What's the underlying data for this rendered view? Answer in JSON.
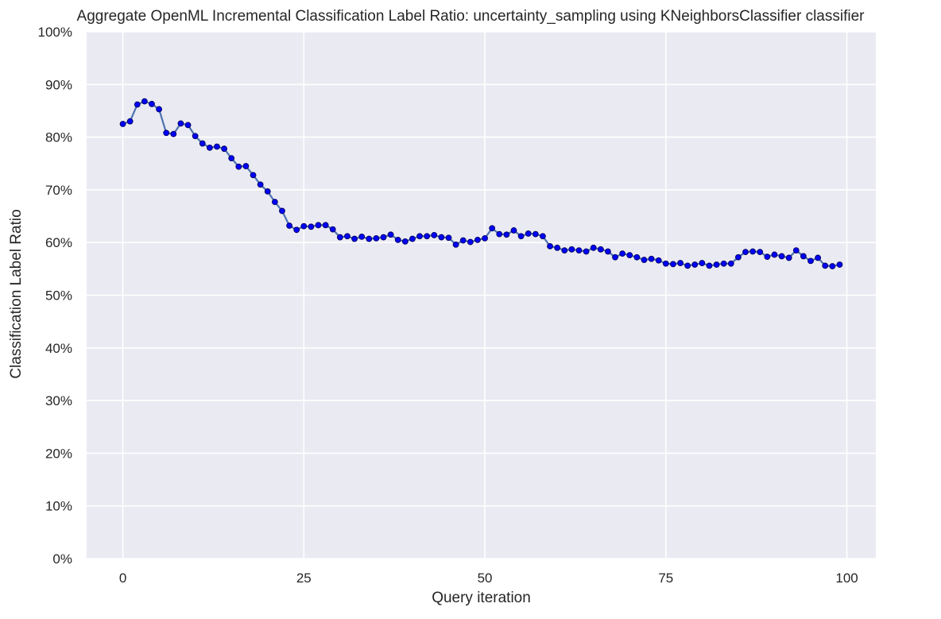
{
  "chart_data": {
    "type": "line",
    "title": "Aggregate OpenML Incremental Classification Label Ratio: uncertainty_sampling using KNeighborsClassifier classifier",
    "xlabel": "Query iteration",
    "ylabel": "Classification Label Ratio",
    "xlim": [
      -5,
      104
    ],
    "ylim": [
      0,
      1
    ],
    "xticks": [
      0,
      25,
      50,
      75,
      100
    ],
    "yticks": [
      0,
      0.1,
      0.2,
      0.3,
      0.4,
      0.5,
      0.6,
      0.7,
      0.8,
      0.9,
      1.0
    ],
    "y_format": "percent",
    "grid": true,
    "legend": "none",
    "colors": {
      "background": "#eaeaf2",
      "grid": "#ffffff",
      "line": "#4c72b0",
      "marker": "#0000ff",
      "marker_edge": "#000066"
    },
    "series": [
      {
        "x": [
          0,
          1,
          2,
          3,
          4,
          5,
          6,
          7,
          8,
          9,
          10,
          11,
          12,
          13,
          14,
          15,
          16,
          17,
          18,
          19,
          20,
          21,
          22,
          23,
          24,
          25,
          26,
          27,
          28,
          29,
          30,
          31,
          32,
          33,
          34,
          35,
          36,
          37,
          38,
          39,
          40,
          41,
          42,
          43,
          44,
          45,
          46,
          47,
          48,
          49,
          50,
          51,
          52,
          53,
          54,
          55,
          56,
          57,
          58,
          59,
          60,
          61,
          62,
          63,
          64,
          65,
          66,
          67,
          68,
          69,
          70,
          71,
          72,
          73,
          74,
          75,
          76,
          77,
          78,
          79,
          80,
          81,
          82,
          83,
          84,
          85,
          86,
          87,
          88,
          89,
          90,
          91,
          92,
          93,
          94,
          95,
          96,
          97,
          98,
          99
        ],
        "values": [
          0.825,
          0.83,
          0.862,
          0.868,
          0.863,
          0.853,
          0.808,
          0.806,
          0.826,
          0.823,
          0.802,
          0.788,
          0.78,
          0.782,
          0.778,
          0.76,
          0.744,
          0.745,
          0.728,
          0.71,
          0.697,
          0.677,
          0.66,
          0.632,
          0.624,
          0.631,
          0.63,
          0.633,
          0.633,
          0.625,
          0.61,
          0.612,
          0.607,
          0.611,
          0.607,
          0.608,
          0.61,
          0.615,
          0.605,
          0.602,
          0.607,
          0.612,
          0.612,
          0.614,
          0.61,
          0.609,
          0.596,
          0.604,
          0.601,
          0.605,
          0.608,
          0.627,
          0.616,
          0.615,
          0.623,
          0.612,
          0.617,
          0.616,
          0.612,
          0.593,
          0.59,
          0.585,
          0.587,
          0.585,
          0.583,
          0.59,
          0.587,
          0.583,
          0.572,
          0.579,
          0.576,
          0.572,
          0.567,
          0.569,
          0.566,
          0.56,
          0.559,
          0.561,
          0.556,
          0.558,
          0.561,
          0.556,
          0.558,
          0.56,
          0.56,
          0.572,
          0.582,
          0.583,
          0.582,
          0.573,
          0.577,
          0.574,
          0.571,
          0.585,
          0.574,
          0.565,
          0.571,
          0.556,
          0.555,
          0.558
        ]
      }
    ]
  }
}
